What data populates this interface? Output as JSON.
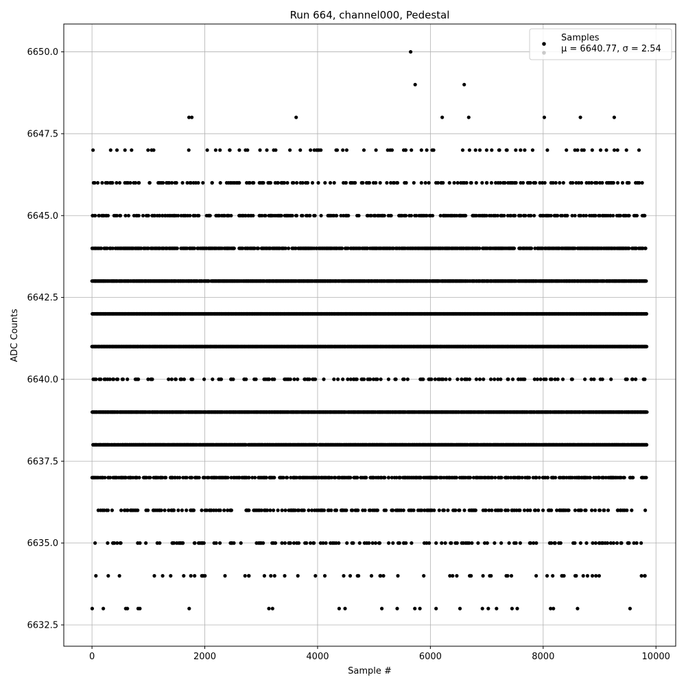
{
  "chart_data": {
    "type": "scatter",
    "title": "Run 664, channel000, Pedestal",
    "xlabel": "Sample #",
    "ylabel": "ADC Counts",
    "xlim": [
      -500,
      10350
    ],
    "ylim": [
      6631.85,
      6650.85
    ],
    "xticks": [
      0,
      2000,
      4000,
      6000,
      8000,
      10000
    ],
    "yticks": [
      6632.5,
      6635.0,
      6637.5,
      6640.0,
      6642.5,
      6645.0,
      6647.5,
      6650.0
    ],
    "xtick_labels": [
      "0",
      "2000",
      "4000",
      "6000",
      "8000",
      "10000"
    ],
    "ytick_labels": [
      "6632.5",
      "6635.0",
      "6637.5",
      "6640.0",
      "6642.5",
      "6645.0",
      "6647.5",
      "6650.0"
    ],
    "grid": true,
    "legend_position": "top-right",
    "series": [
      {
        "name": "Samples",
        "color": "#000000",
        "n_samples": 9840,
        "level_density": {
          "6633": 0.02,
          "6634": 0.05,
          "6635": 0.13,
          "6636": 0.22,
          "6637": 0.45,
          "6638": 0.92,
          "6639": 0.95,
          "6640": 0.16,
          "6641": 1.0,
          "6642": 1.0,
          "6643": 0.93,
          "6644": 0.6,
          "6645": 0.33,
          "6646": 0.2,
          "6647": 0.07
        },
        "outliers": [
          {
            "x": 1720,
            "y": 6648
          },
          {
            "x": 1770,
            "y": 6648
          },
          {
            "x": 3620,
            "y": 6648
          },
          {
            "x": 6210,
            "y": 6648
          },
          {
            "x": 6680,
            "y": 6648
          },
          {
            "x": 8020,
            "y": 6648
          },
          {
            "x": 8660,
            "y": 6648
          },
          {
            "x": 9260,
            "y": 6648
          },
          {
            "x": 5730,
            "y": 6649
          },
          {
            "x": 6600,
            "y": 6649
          },
          {
            "x": 5650,
            "y": 6650
          }
        ]
      }
    ],
    "legend": {
      "label": "Samples",
      "stats": "μ = 6640.77, σ = 2.54"
    }
  }
}
